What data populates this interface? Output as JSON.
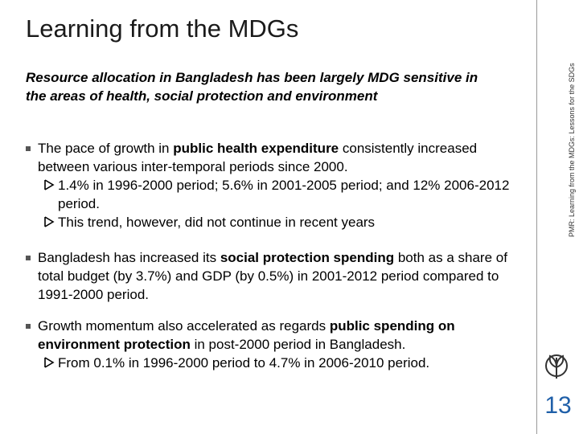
{
  "header": {
    "title": "Learning from the MDGs"
  },
  "subtitle": "Resource allocation in Bangladesh has been largely MDG sensitive in the areas of health, social protection and environment",
  "bullets": [
    {
      "runs": [
        {
          "text": "The pace of growth in "
        },
        {
          "text": "public health expenditure",
          "bold": true
        },
        {
          "text": " consistently increased between various inter-temporal periods since 2000."
        }
      ],
      "sub": [
        "1.4% in 1996-2000 period; 5.6% in 2001-2005 period; and 12% 2006-2012 period.",
        "This trend, however, did not continue in recent years"
      ]
    },
    {
      "runs": [
        {
          "text": "Bangladesh has increased its "
        },
        {
          "text": "social protection spending",
          "bold": true
        },
        {
          "text": " both as a share of total budget (by 3.7%) and GDP (by 0.5%) in 2001-2012 period compared to 1991-2000 period."
        }
      ],
      "sub": []
    },
    {
      "runs": [
        {
          "text": "Growth momentum also accelerated as regards "
        },
        {
          "text": "public spending on environment protection",
          "bold": true
        },
        {
          "text": " in post-2000 period in Bangladesh."
        }
      ],
      "sub": [
        "From 0.1% in 1996-2000 period to 4.7% in 2006-2010 period."
      ]
    }
  ],
  "sidebar": {
    "caption": "PMR: Learning from the MDGs: Lessons for the SDGs",
    "page_number": 13
  }
}
